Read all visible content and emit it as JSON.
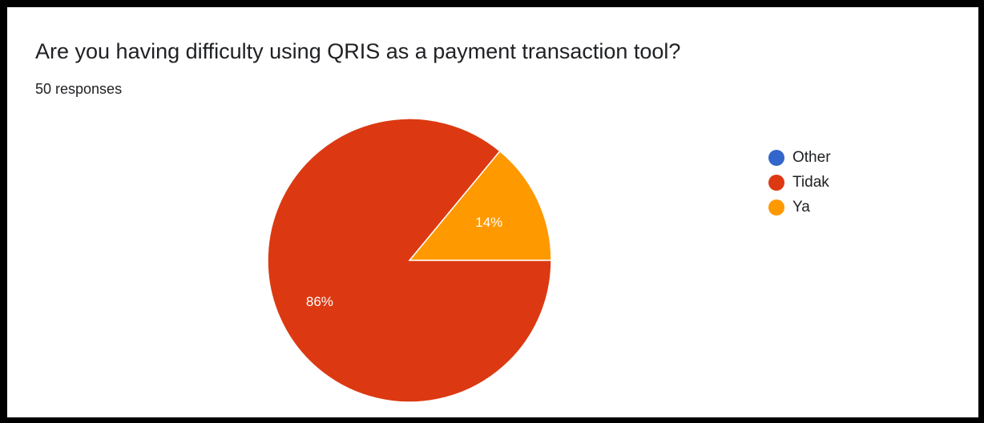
{
  "question": "Are you having difficulty using QRIS as a payment transaction tool?",
  "responses_label": "50 responses",
  "chart_data": {
    "type": "pie",
    "title": "Are you having difficulty using QRIS as a payment transaction tool?",
    "total_responses": 50,
    "slices": [
      {
        "label": "Other",
        "value": 0,
        "percent_label": "",
        "color": "#3366cc"
      },
      {
        "label": "Tidak",
        "value": 86,
        "percent_label": "86%",
        "color": "#dc3912"
      },
      {
        "label": "Ya",
        "value": 14,
        "percent_label": "14%",
        "color": "#ff9900"
      }
    ],
    "legend_position": "right"
  }
}
